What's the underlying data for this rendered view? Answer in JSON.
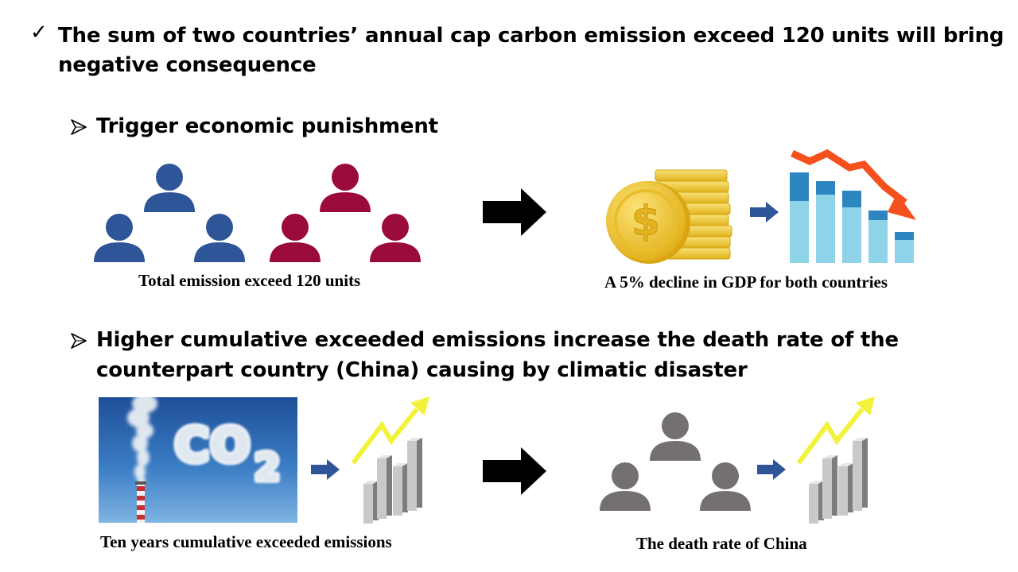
{
  "main_point": {
    "icon": "check-icon",
    "text_line1": "The sum of two countries’ annual cap carbon emission exceed 120 units will bring",
    "text_line2": "negative consequence"
  },
  "point_1": {
    "icon": "arrowhead-bullet-icon",
    "title": "Trigger economic punishment",
    "left_caption": "Total emission exceed 120 units",
    "right_caption": "A 5% decline in GDP for both countries",
    "group_a_color": "#2e5597",
    "group_b_color": "#9a0a3b",
    "coin_symbol": "$"
  },
  "point_2": {
    "icon": "arrowhead-bullet-icon",
    "title_line1": "Higher cumulative exceeded emissions increase the death rate of the",
    "title_line2": "counterpart country (China) causing by climatic disaster",
    "left_caption": "Ten years cumulative exceeded emissions",
    "right_caption": "The death rate of China",
    "photo_text": "CO2",
    "people_color": "#757070"
  },
  "colors": {
    "arrow_big": "#000000",
    "arrow_small": "#2e5597",
    "trend_up": "#f2f23a",
    "trend_down": "#f4511e",
    "bar_dark": "#2e86c1",
    "bar_light": "#8fd3e9"
  }
}
